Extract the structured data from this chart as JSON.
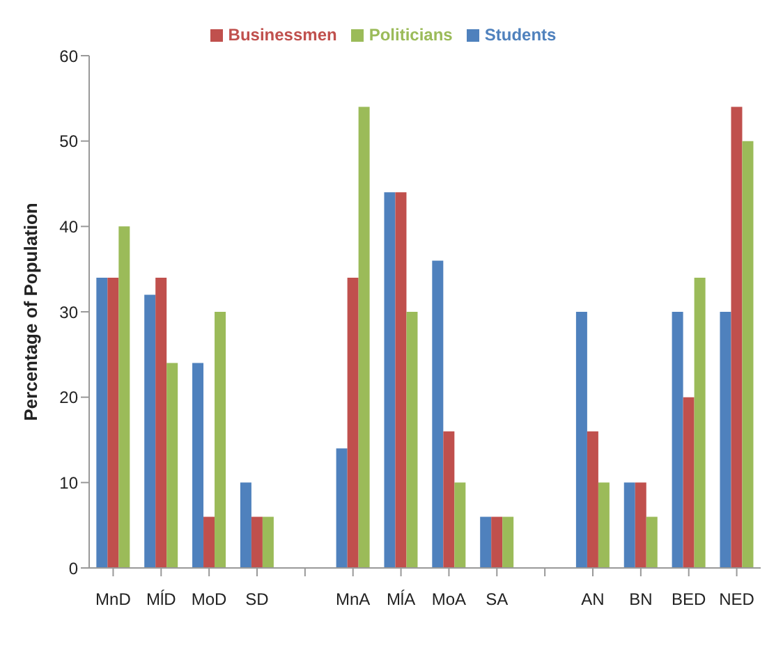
{
  "chart_data": {
    "type": "bar",
    "ylabel": "Percentage of Population",
    "categories": [
      "MnD",
      "MĺD",
      "MoD",
      "SD",
      null,
      "MnA",
      "MĺA",
      "MoA",
      "SA",
      null,
      "AN",
      "BN",
      "BED",
      "NED"
    ],
    "series": [
      {
        "name": "Students",
        "color": "#4f81bd",
        "values": [
          34,
          32,
          24,
          10,
          null,
          14,
          44,
          36,
          6,
          null,
          30,
          10,
          30,
          30
        ]
      },
      {
        "name": "Businessmen",
        "color": "#c0504d",
        "values": [
          34,
          34,
          6,
          6,
          null,
          34,
          44,
          16,
          6,
          null,
          16,
          10,
          20,
          54
        ]
      },
      {
        "name": "Politicians",
        "color": "#9bbb59",
        "values": [
          40,
          24,
          30,
          6,
          null,
          54,
          30,
          10,
          6,
          null,
          10,
          6,
          34,
          50
        ]
      }
    ],
    "ylim": [
      0,
      60
    ],
    "yticks": [
      0,
      10,
      20,
      30,
      40,
      50,
      60
    ],
    "grid": false,
    "legend": "top"
  }
}
